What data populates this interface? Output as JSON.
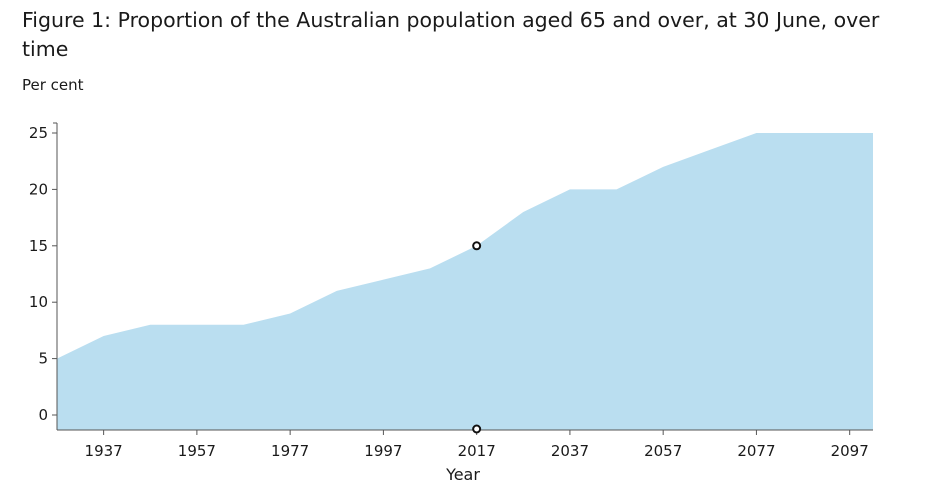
{
  "page": {
    "title": "Figure 1: Proportion of the Australian population aged 65 and over, at 30 June, over time"
  },
  "chart_data": {
    "type": "area",
    "title": "Figure 1: Proportion of the Australian population aged 65 and over, at 30 June, over time",
    "ylabel": "Per cent",
    "xlabel": "Year",
    "x": [
      1927,
      1937,
      1947,
      1957,
      1967,
      1977,
      1987,
      1997,
      2007,
      2017,
      2027,
      2037,
      2047,
      2057,
      2067,
      2077,
      2087,
      2097,
      2102
    ],
    "values": [
      5,
      7,
      8,
      8,
      8,
      9,
      11,
      12,
      13,
      15,
      18,
      20,
      20,
      22,
      23.5,
      25,
      25,
      25,
      25
    ],
    "xlim": [
      1927,
      2102
    ],
    "ylim": [
      0,
      25
    ],
    "x_ticks": [
      "1937",
      "1957",
      "1977",
      "1997",
      "2017",
      "2037",
      "2057",
      "2077",
      "2097"
    ],
    "y_ticks": [
      "0",
      "5",
      "10",
      "15",
      "20",
      "25"
    ],
    "highlight": {
      "x": 2017,
      "y": 15
    },
    "grid": false,
    "fill_color": "#badef0",
    "axis_color": "#555555",
    "marker_color": "#111111"
  }
}
